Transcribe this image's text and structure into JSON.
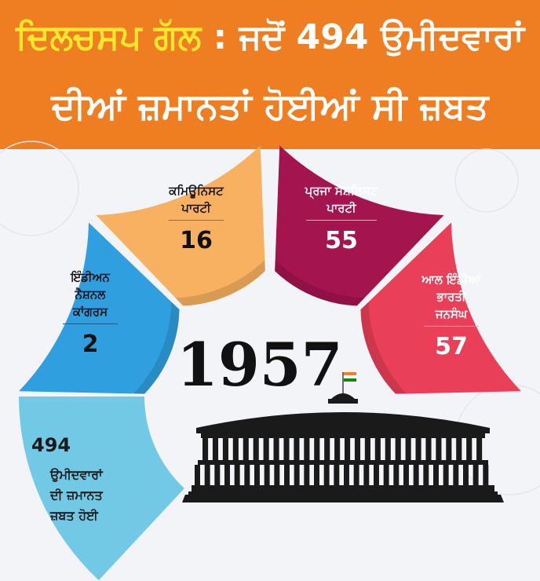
{
  "headline": {
    "highlight": "ਦਿਲਚਸਪ ਗੱਲ",
    "rest": " : ਜਦੋਂ 494 ਉਮੀਦਵਾਰਾਂ",
    "line2": "ਦੀਆਂ ਜ਼ਮਾਨਤਾਂ ਹੋਈਆਂ ਸੀ ਜ਼ਬਤ"
  },
  "year": "1957",
  "parties": [
    {
      "label_lines": [
        "ਇੰਡੀਅਨ",
        "ਨੈਸ਼ਨਲ",
        "ਕਾਂਗਰਸ"
      ],
      "value": "2",
      "color": "#2f9fe0",
      "text_color": "#111111"
    },
    {
      "label_lines": [
        "ਕਮਿਊਨਿਸਟ",
        "ਪਾਰਟੀ"
      ],
      "value": "16",
      "color": "#f8b160",
      "text_color": "#111111"
    },
    {
      "label_lines": [
        "ਪ੍ਰਜਾ ਸੋਸ਼ਲਿਸਟ",
        "ਪਾਰਟੀ"
      ],
      "value": "55",
      "color": "#a4144f",
      "text_color": "#ffffff"
    },
    {
      "label_lines": [
        "ਆਲ ਇੰਡੀਆ",
        "ਭਾਰਤੀ",
        "ਜਨਸੰਘ"
      ],
      "value": "57",
      "color": "#ea3f58",
      "text_color": "#ffffff"
    }
  ],
  "total": {
    "value": "494",
    "label_lines": [
      "ਉਮੀਦਵਾਰਾਂ",
      "ਦੀ ਜ਼ਮਾਨਤ",
      "ਜ਼ਬਤ ਹੋਈ"
    ],
    "color": "#72c9e6"
  },
  "colors": {
    "banner": "#ef7d22",
    "highlight": "#f9e82c",
    "flag_saffron": "#f47b20",
    "flag_green": "#138808",
    "building": "#1a1a1a"
  },
  "icons": [
    "parliament-building-icon",
    "indian-flag-icon"
  ]
}
